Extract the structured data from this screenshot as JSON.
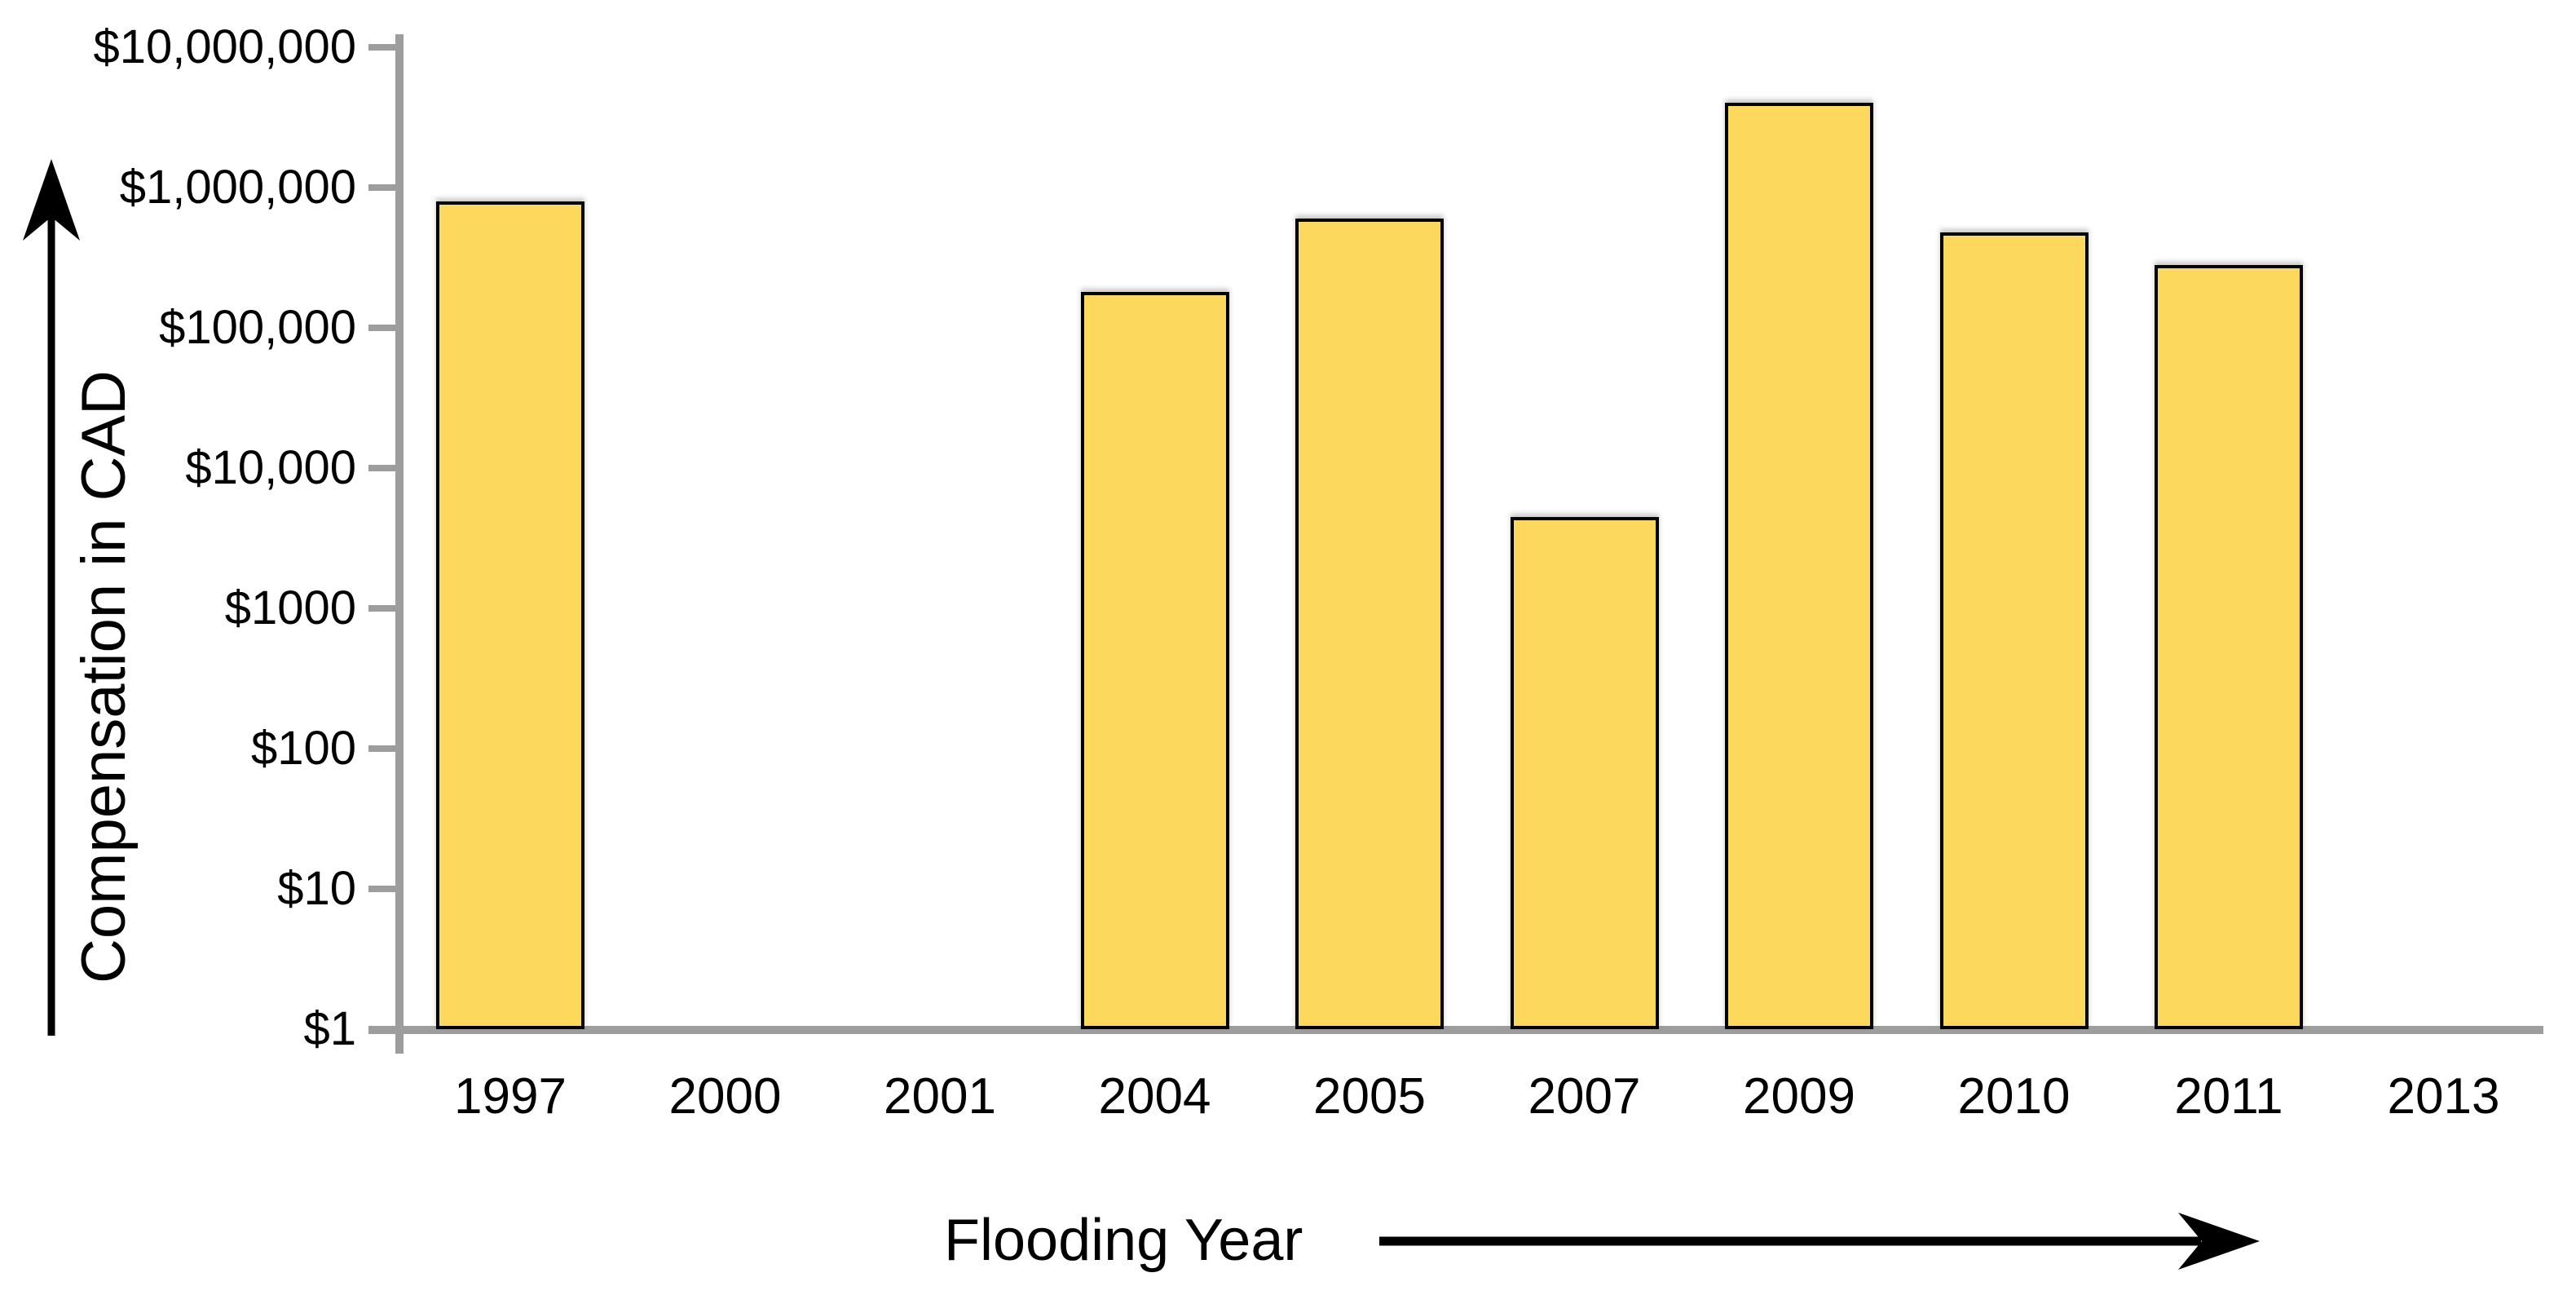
{
  "chart_data": {
    "type": "bar",
    "title": "",
    "xlabel": "Flooding Year",
    "ylabel": "Compensation in CAD",
    "y_scale": "log10",
    "ylim": [
      1,
      10000000
    ],
    "grid": false,
    "legend": "none",
    "categories": [
      "1997",
      "2000",
      "2001",
      "2004",
      "2005",
      "2007",
      "2009",
      "2010",
      "2011",
      "2013"
    ],
    "values": [
      800000,
      null,
      null,
      180000,
      600000,
      4500,
      4000000,
      480000,
      280000,
      null
    ],
    "ytick_values": [
      1,
      10,
      100,
      1000,
      10000,
      100000,
      1000000,
      10000000
    ],
    "ytick_labels": [
      "$1",
      "$10",
      "$100",
      "$1000",
      "$10,000",
      "$100,000",
      "$1,000,000",
      "$10,000,000"
    ],
    "bar_color": "#FCD95C",
    "bar_border_color": "#000000",
    "axis_color": "#9D9D9D",
    "text_color": "#000000",
    "icons": {
      "y_axis_arrow": "up-arrow",
      "x_axis_arrow": "right-arrow"
    }
  }
}
